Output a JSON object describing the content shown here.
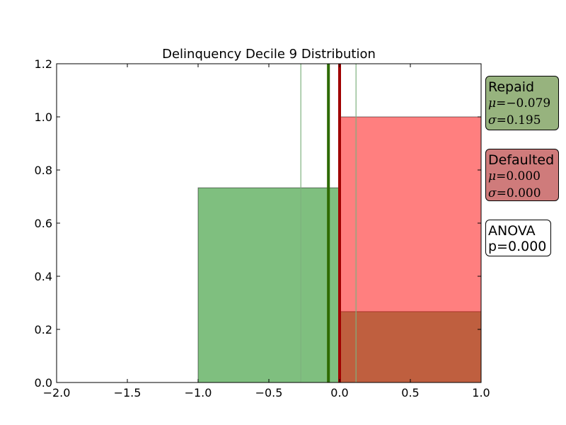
{
  "chart_data": {
    "type": "bar",
    "title": "Delinquency Decile 9 Distribution",
    "xlabel": "",
    "ylabel": "",
    "xlim": [
      -2.0,
      1.0
    ],
    "ylim": [
      0.0,
      1.2
    ],
    "x_ticks": [
      -2.0,
      -1.5,
      -1.0,
      -0.5,
      0.0,
      0.5,
      1.0
    ],
    "x_tick_labels": [
      "−2.0",
      "−1.5",
      "−1.0",
      "−0.5",
      "0.0",
      "0.5",
      "1.0"
    ],
    "y_ticks": [
      0.0,
      0.2,
      0.4,
      0.6,
      0.8,
      1.0,
      1.2
    ],
    "y_tick_labels": [
      "0.0",
      "0.2",
      "0.4",
      "0.6",
      "0.8",
      "1.0",
      "1.2"
    ],
    "grid": false,
    "series": [
      {
        "name": "Repaid",
        "color": "#008000",
        "bins": [
          {
            "x0": -1.0,
            "x1": 0.0,
            "value": 0.733
          },
          {
            "x0": 0.0,
            "x1": 1.0,
            "value": 0.267
          }
        ],
        "mean": -0.079,
        "std": 0.195
      },
      {
        "name": "Defaulted",
        "color": "#ff0000",
        "bins": [
          {
            "x0": 0.0,
            "x1": 1.0,
            "value": 1.0
          }
        ],
        "mean": 0.0,
        "std": 0.0
      }
    ],
    "mean_lines": [
      {
        "series": "Repaid",
        "x": -0.079,
        "color": "#2d6a00"
      },
      {
        "series": "Defaulted",
        "x": 0.0,
        "color": "#a00000"
      }
    ],
    "std_lines": [
      {
        "series": "Repaid",
        "x": -0.274,
        "color": "#7fb17f"
      },
      {
        "series": "Repaid",
        "x": 0.116,
        "color": "#7fb17f"
      }
    ]
  },
  "legend": {
    "repaid": {
      "label": "Repaid",
      "mu_symbol": "μ",
      "mu_value": "−0.079",
      "sigma_symbol": "σ",
      "sigma_value": "0.195",
      "bg_color": "#97b37e"
    },
    "defaulted": {
      "label": "Defaulted",
      "mu_symbol": "μ",
      "mu_value": "0.000",
      "sigma_symbol": "σ",
      "sigma_value": "0.000",
      "bg_color": "#cf7b7b"
    },
    "anova": {
      "label": "ANOVA",
      "p_text": "p=0.000"
    }
  }
}
